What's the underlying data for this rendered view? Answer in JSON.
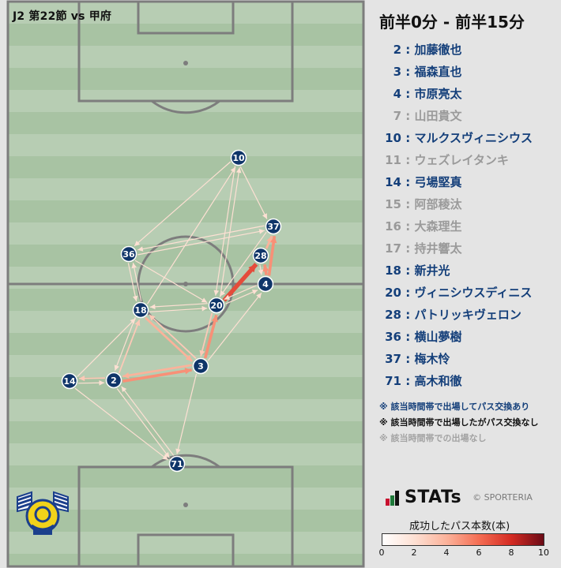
{
  "match_label": "J2 第22節 vs 甲府",
  "period_title": "前半0分 - 前半15分",
  "colors": {
    "active": "#143f7a",
    "inactive": "#9a9a9a",
    "node": "#0f3569",
    "pitch_light": "#b7cdb3",
    "pitch_dark": "#a8c3a3"
  },
  "players": [
    {
      "num": "2",
      "sep": " : ",
      "name": "加藤徹也",
      "active": true
    },
    {
      "num": "3",
      "sep": " : ",
      "name": "福森直也",
      "active": true
    },
    {
      "num": "4",
      "sep": " : ",
      "name": "市原亮太",
      "active": true
    },
    {
      "num": "7",
      "sep": " : ",
      "name": "山田貴文",
      "active": false
    },
    {
      "num": "10",
      "sep": " : ",
      "name": "マルクスヴィニシウス",
      "active": true
    },
    {
      "num": "11",
      "sep": " : ",
      "name": "ウェズレイタンキ",
      "active": false
    },
    {
      "num": "14",
      "sep": " : ",
      "name": "弓場堅真",
      "active": true
    },
    {
      "num": "15",
      "sep": " : ",
      "name": "阿部稜汰",
      "active": false
    },
    {
      "num": "16",
      "sep": " : ",
      "name": "大森理生",
      "active": false
    },
    {
      "num": "17",
      "sep": " : ",
      "name": "持井響太",
      "active": false
    },
    {
      "num": "18",
      "sep": " : ",
      "name": "新井光",
      "active": true
    },
    {
      "num": "20",
      "sep": " : ",
      "name": "ヴィニシウスディニス",
      "active": true
    },
    {
      "num": "28",
      "sep": " : ",
      "name": "パトリッキヴェロン",
      "active": true
    },
    {
      "num": "36",
      "sep": " : ",
      "name": "横山夢樹",
      "active": true
    },
    {
      "num": "37",
      "sep": " : ",
      "name": "梅木怜",
      "active": true
    },
    {
      "num": "71",
      "sep": " : ",
      "name": "高木和徹",
      "active": true
    }
  ],
  "legend": {
    "note_active": "※ 該当時間帯で出場してパス交換あり",
    "note_no_pass": "※ 該当時間帯で出場したがパス交換なし",
    "note_absent": "※ 該当時間帯での出場なし",
    "brand": "STATs",
    "copyright": "© SPORTERIA",
    "scale_title": "成功したパス本数(本)",
    "scale_ticks": [
      "0",
      "2",
      "4",
      "6",
      "8",
      "10"
    ],
    "scale_colors": [
      "#ffffff",
      "#6b0b16"
    ]
  },
  "network_nodes": [
    {
      "num": "10"
    },
    {
      "num": "37"
    },
    {
      "num": "36"
    },
    {
      "num": "28"
    },
    {
      "num": "4"
    },
    {
      "num": "18"
    },
    {
      "num": "20"
    },
    {
      "num": "3"
    },
    {
      "num": "2"
    },
    {
      "num": "14"
    },
    {
      "num": "71"
    }
  ]
}
